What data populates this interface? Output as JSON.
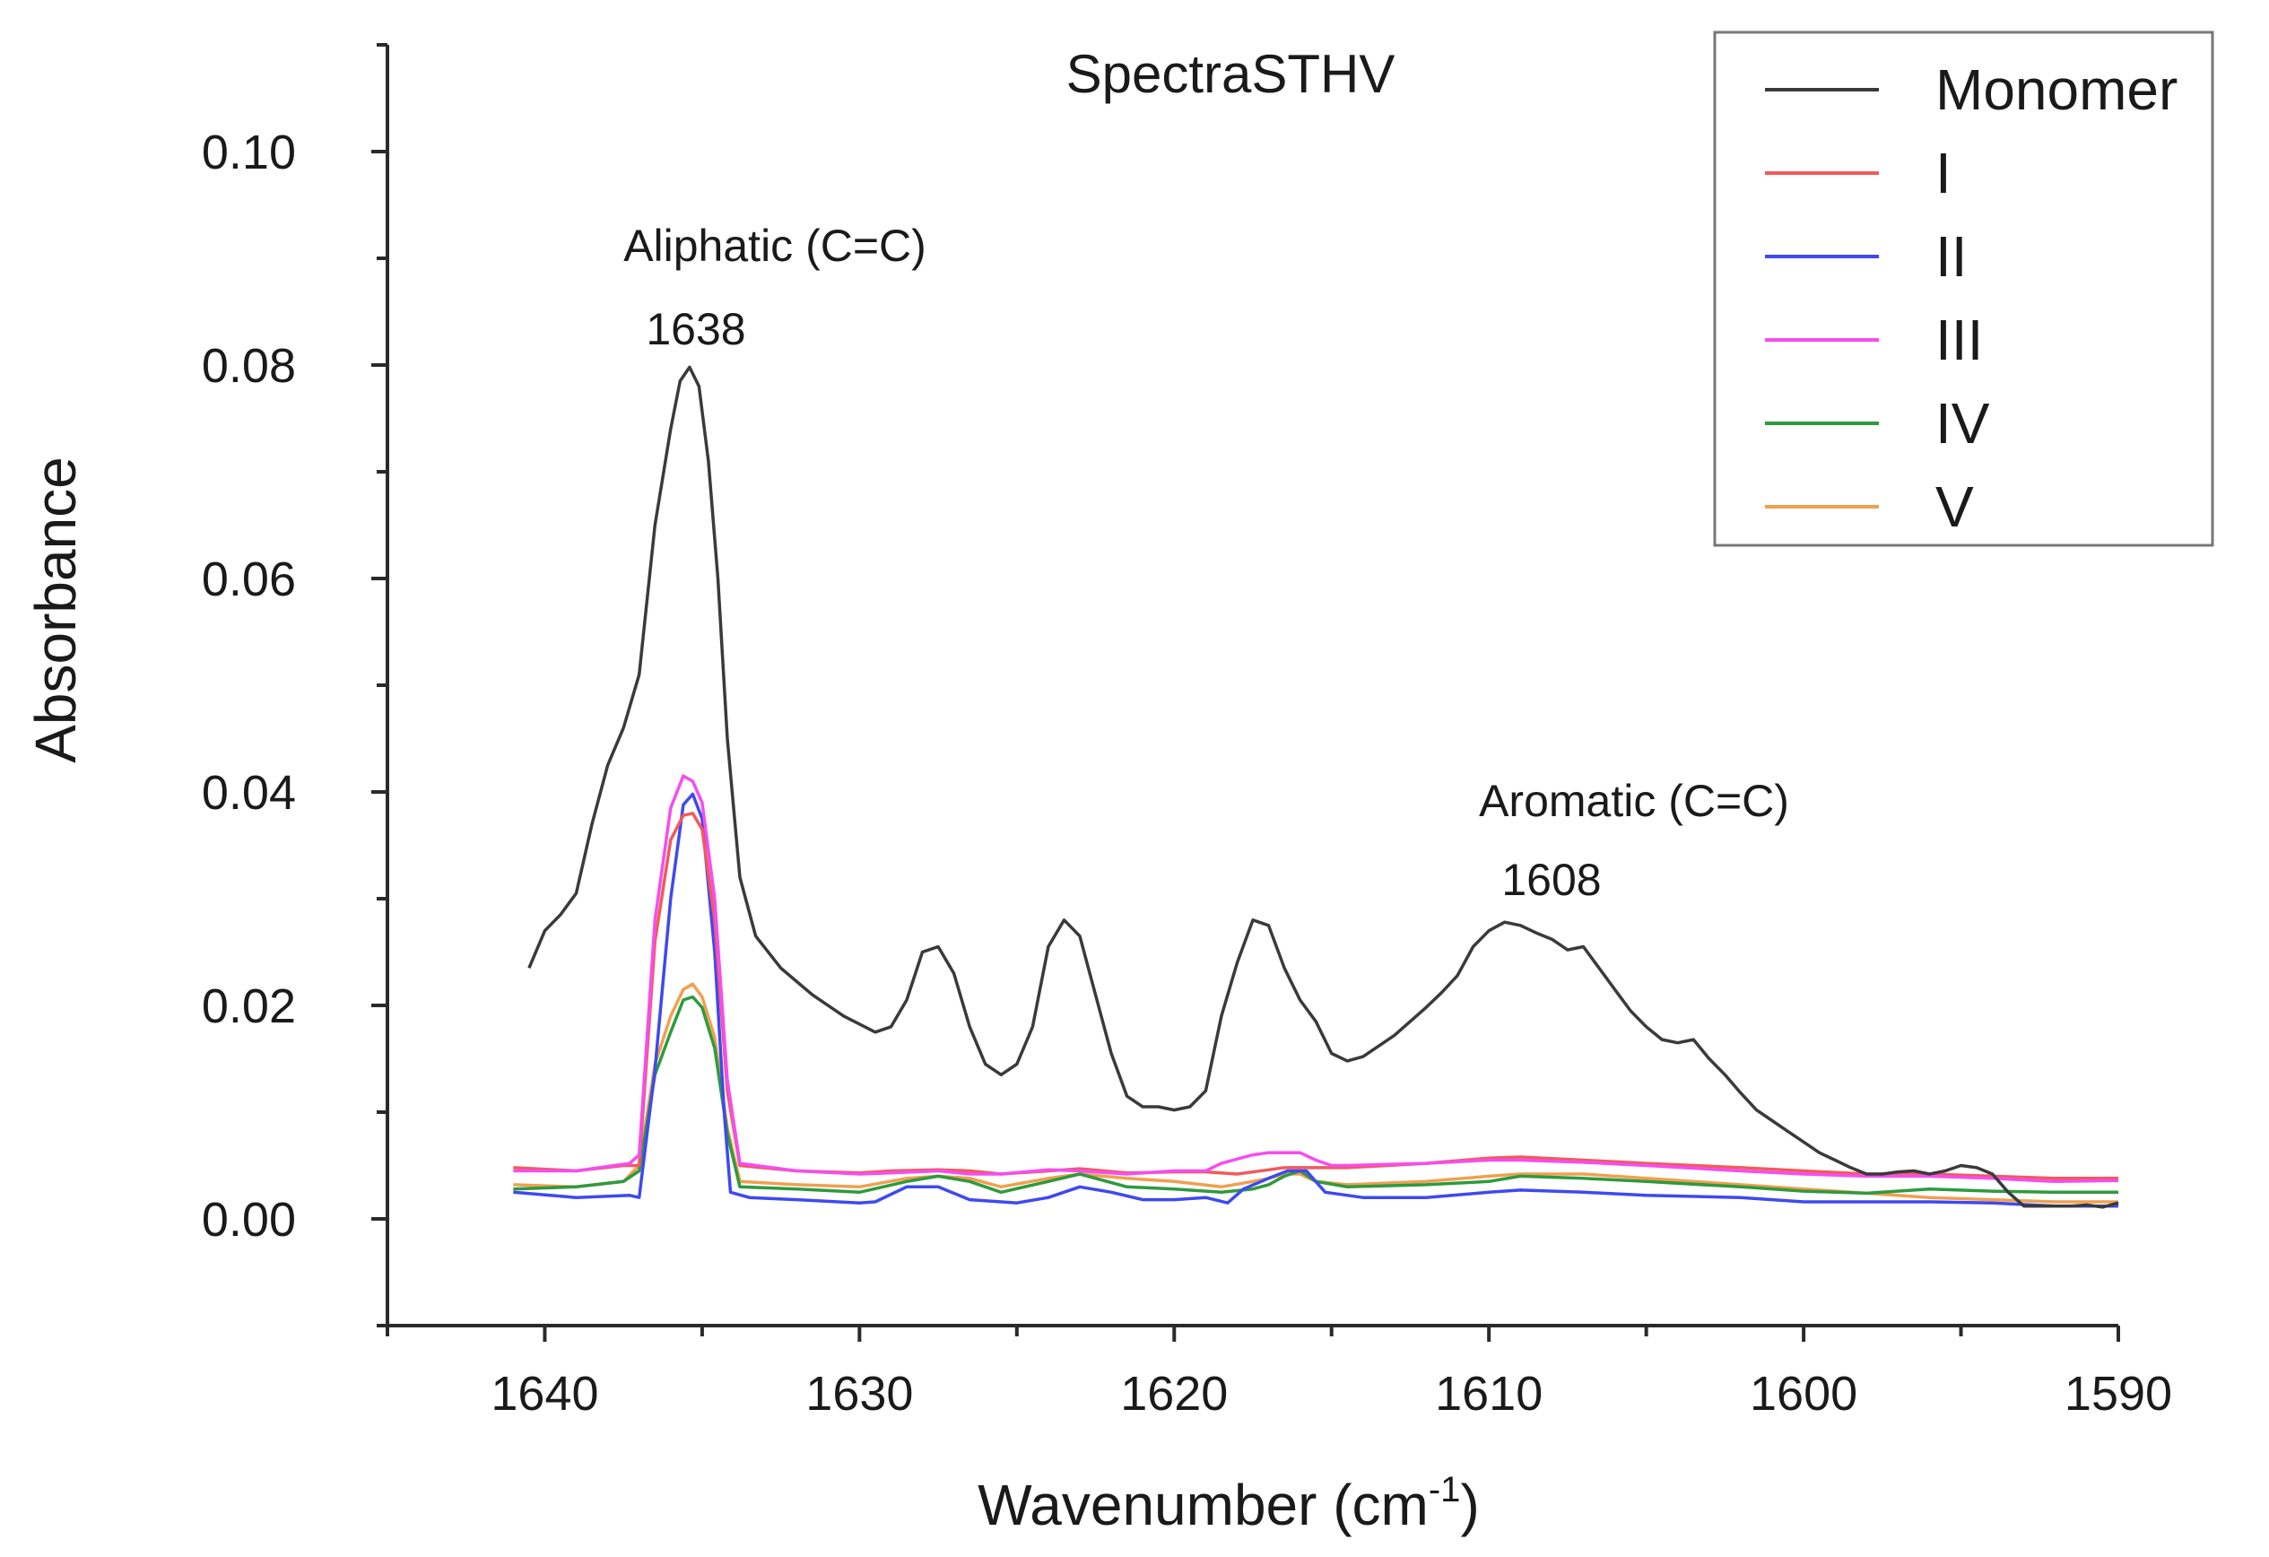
{
  "chart_data": {
    "type": "line",
    "title": "SpectraSTHV",
    "xlabel": "Wavenumber (cm",
    "xlabel_sup": "-1",
    "xlabel_suffix": ")",
    "ylabel": "Absorbance",
    "xlim": [
      1645,
      1590
    ],
    "ylim": [
      -0.01,
      0.11
    ],
    "x_ticks": [
      1640,
      1630,
      1620,
      1610,
      1600,
      1590
    ],
    "x_tick_labels": [
      "1640",
      "1630",
      "1620",
      "1610",
      "1600",
      "1590"
    ],
    "y_ticks": [
      0.0,
      0.02,
      0.04,
      0.06,
      0.08,
      0.1
    ],
    "y_tick_labels": [
      "0.00",
      "0.02",
      "0.04",
      "0.06",
      "0.08",
      "0.10"
    ],
    "grid": false,
    "legend_position": "top-right",
    "annotations": [
      {
        "label": "Aliphatic (C=C)",
        "value": "1638",
        "x": 1635.4,
        "y": 0.0798
      },
      {
        "label": "Aromatic (C=C)",
        "value": "1608",
        "x": 1609.2,
        "y": 0.0278
      }
    ],
    "series": [
      {
        "name": "Monomer",
        "color": "#3a3a3a",
        "x": [
          1640.5,
          1640,
          1639.5,
          1639,
          1638.5,
          1638,
          1637.5,
          1637,
          1636.5,
          1636,
          1635.7,
          1635.4,
          1635.1,
          1634.8,
          1634.5,
          1634.2,
          1633.8,
          1633.3,
          1632.5,
          1631.5,
          1630.5,
          1629.5,
          1629,
          1628.5,
          1628,
          1627.5,
          1627,
          1626.5,
          1626,
          1625.5,
          1625,
          1624.5,
          1624,
          1623.5,
          1623,
          1622.5,
          1622,
          1621.5,
          1621,
          1620.5,
          1620,
          1619.5,
          1619,
          1618.5,
          1618,
          1617.5,
          1617,
          1616.5,
          1616,
          1615.5,
          1615,
          1614.5,
          1614,
          1613.5,
          1613,
          1612.5,
          1612,
          1611.5,
          1611,
          1610.5,
          1610,
          1609.5,
          1609,
          1608.5,
          1608,
          1607.5,
          1607,
          1606.5,
          1606,
          1605.5,
          1605,
          1604.5,
          1604,
          1603.5,
          1603,
          1602.5,
          1602,
          1601.5,
          1601,
          1600.5,
          1600,
          1599.5,
          1599,
          1598.5,
          1598,
          1597.5,
          1597,
          1596.5,
          1596,
          1595.5,
          1595,
          1594.5,
          1594,
          1593.5,
          1593,
          1592.5,
          1592,
          1591.5,
          1591,
          1590.5,
          1590
        ],
        "y": [
          0.0235,
          0.027,
          0.0285,
          0.0305,
          0.037,
          0.0425,
          0.046,
          0.051,
          0.065,
          0.074,
          0.0785,
          0.0798,
          0.078,
          0.071,
          0.06,
          0.045,
          0.032,
          0.0265,
          0.0235,
          0.021,
          0.019,
          0.0175,
          0.018,
          0.0205,
          0.025,
          0.0255,
          0.023,
          0.018,
          0.0145,
          0.0135,
          0.0145,
          0.018,
          0.0255,
          0.028,
          0.0265,
          0.021,
          0.0155,
          0.0115,
          0.0105,
          0.0105,
          0.0102,
          0.0105,
          0.012,
          0.019,
          0.024,
          0.028,
          0.0275,
          0.0235,
          0.0205,
          0.0185,
          0.0155,
          0.0148,
          0.0152,
          0.0162,
          0.0172,
          0.0185,
          0.0198,
          0.0212,
          0.0228,
          0.0255,
          0.027,
          0.0278,
          0.0275,
          0.0268,
          0.0262,
          0.0252,
          0.0255,
          0.0235,
          0.0215,
          0.0195,
          0.018,
          0.0168,
          0.0165,
          0.0168,
          0.015,
          0.0135,
          0.0118,
          0.0102,
          0.0092,
          0.0082,
          0.0072,
          0.0062,
          0.0055,
          0.0048,
          0.0042,
          0.0042,
          0.0044,
          0.0045,
          0.0042,
          0.0045,
          0.005,
          0.0048,
          0.0042,
          0.0025,
          0.0012,
          0.0012,
          0.0012,
          0.0012,
          0.0013,
          0.0011,
          0.0015
        ]
      },
      {
        "name": "I",
        "color": "#f25a5a",
        "x": [
          1641,
          1639,
          1637.5,
          1637,
          1636.5,
          1636,
          1635.6,
          1635.3,
          1635,
          1634.6,
          1634.2,
          1633.8,
          1632,
          1630,
          1629,
          1627.5,
          1626.5,
          1625.5,
          1624,
          1623,
          1621.5,
          1620,
          1619,
          1618,
          1617,
          1616.5,
          1616,
          1615.5,
          1614.5,
          1612,
          1610,
          1609,
          1607,
          1605,
          1602,
          1600,
          1598,
          1596,
          1594,
          1592,
          1590
        ],
        "y": [
          0.0048,
          0.0045,
          0.005,
          0.005,
          0.026,
          0.0355,
          0.0378,
          0.038,
          0.0365,
          0.028,
          0.012,
          0.005,
          0.0045,
          0.0043,
          0.0045,
          0.0046,
          0.0045,
          0.0042,
          0.0045,
          0.0047,
          0.0043,
          0.0044,
          0.0044,
          0.0042,
          0.0046,
          0.0048,
          0.0048,
          0.0048,
          0.0048,
          0.0052,
          0.0057,
          0.0058,
          0.0055,
          0.0052,
          0.0048,
          0.0045,
          0.0042,
          0.0042,
          0.004,
          0.0038,
          0.0038
        ]
      },
      {
        "name": "II",
        "color": "#3e49f0",
        "x": [
          1641,
          1639,
          1637.3,
          1637,
          1636.5,
          1636,
          1635.6,
          1635.3,
          1635,
          1634.6,
          1634.3,
          1634.1,
          1633.5,
          1632,
          1630,
          1629.5,
          1628.5,
          1627.5,
          1626.5,
          1625.5,
          1625,
          1624,
          1623,
          1622,
          1621,
          1620,
          1619,
          1618.3,
          1617.8,
          1617,
          1616.4,
          1615.8,
          1615.2,
          1614,
          1612,
          1610,
          1609,
          1607,
          1605,
          1602,
          1600,
          1598,
          1596,
          1594,
          1592,
          1590
        ],
        "y": [
          0.0025,
          0.002,
          0.0022,
          0.002,
          0.014,
          0.03,
          0.0388,
          0.0398,
          0.0375,
          0.025,
          0.01,
          0.0025,
          0.002,
          0.0018,
          0.0015,
          0.0016,
          0.003,
          0.003,
          0.0018,
          0.0016,
          0.0015,
          0.002,
          0.003,
          0.0025,
          0.0018,
          0.0018,
          0.002,
          0.0015,
          0.0028,
          0.0038,
          0.0045,
          0.0045,
          0.0025,
          0.002,
          0.002,
          0.0025,
          0.0027,
          0.0025,
          0.0022,
          0.002,
          0.0016,
          0.0016,
          0.0016,
          0.0015,
          0.0012,
          0.0012
        ]
      },
      {
        "name": "III",
        "color": "#f54df0",
        "x": [
          1641,
          1639,
          1637.3,
          1637,
          1636.5,
          1636,
          1635.6,
          1635.3,
          1635,
          1634.6,
          1634.2,
          1633.8,
          1632,
          1630,
          1629,
          1627.5,
          1626.5,
          1625.5,
          1624,
          1623,
          1621.5,
          1620,
          1619,
          1618.5,
          1617.5,
          1617,
          1616.5,
          1616,
          1615.5,
          1615,
          1614.5,
          1612,
          1610,
          1609,
          1607,
          1605,
          1602,
          1600,
          1598,
          1596,
          1594,
          1592,
          1590
        ],
        "y": [
          0.0045,
          0.0045,
          0.0052,
          0.006,
          0.028,
          0.0385,
          0.0415,
          0.041,
          0.039,
          0.03,
          0.013,
          0.0052,
          0.0045,
          0.0042,
          0.0043,
          0.0045,
          0.0042,
          0.0042,
          0.0046,
          0.0045,
          0.0042,
          0.0045,
          0.0045,
          0.0052,
          0.006,
          0.0062,
          0.0062,
          0.0062,
          0.0055,
          0.005,
          0.005,
          0.0052,
          0.0055,
          0.0055,
          0.0053,
          0.005,
          0.0045,
          0.0042,
          0.004,
          0.004,
          0.0038,
          0.0035,
          0.0036
        ]
      },
      {
        "name": "IV",
        "color": "#2e9a3e",
        "x": [
          1641,
          1639,
          1637.5,
          1637,
          1636.5,
          1636,
          1635.6,
          1635.3,
          1635,
          1634.6,
          1634.2,
          1633.8,
          1632,
          1630,
          1628.5,
          1627.5,
          1626.5,
          1625.5,
          1624,
          1623,
          1621.5,
          1620,
          1618.5,
          1617.5,
          1617,
          1616.5,
          1616,
          1615.5,
          1614.5,
          1612,
          1610,
          1609,
          1607,
          1605,
          1602,
          1600,
          1598,
          1596,
          1594,
          1592,
          1590
        ],
        "y": [
          0.0028,
          0.003,
          0.0035,
          0.0045,
          0.0135,
          0.0175,
          0.0205,
          0.0208,
          0.0198,
          0.016,
          0.008,
          0.003,
          0.0028,
          0.0025,
          0.0035,
          0.004,
          0.0035,
          0.0025,
          0.0035,
          0.0042,
          0.003,
          0.0028,
          0.0025,
          0.0028,
          0.0032,
          0.004,
          0.0045,
          0.0035,
          0.003,
          0.0032,
          0.0035,
          0.004,
          0.0038,
          0.0035,
          0.003,
          0.0026,
          0.0024,
          0.0028,
          0.0026,
          0.0025,
          0.0025
        ]
      },
      {
        "name": "V",
        "color": "#f0a050",
        "x": [
          1641,
          1639,
          1637.5,
          1637,
          1636.5,
          1636,
          1635.6,
          1635.3,
          1635,
          1634.6,
          1634.2,
          1633.8,
          1632,
          1630,
          1628.5,
          1627.5,
          1626.5,
          1625.5,
          1624,
          1623,
          1621.5,
          1620,
          1618.5,
          1617.5,
          1617,
          1616.5,
          1616,
          1615.5,
          1614.5,
          1612,
          1610,
          1609,
          1607,
          1605,
          1602,
          1600,
          1598,
          1596,
          1594,
          1592,
          1590
        ],
        "y": [
          0.0032,
          0.003,
          0.0035,
          0.005,
          0.0145,
          0.019,
          0.0215,
          0.022,
          0.0208,
          0.017,
          0.0085,
          0.0035,
          0.0032,
          0.003,
          0.0038,
          0.004,
          0.0038,
          0.003,
          0.0038,
          0.0042,
          0.0038,
          0.0035,
          0.003,
          0.0035,
          0.0038,
          0.0042,
          0.0042,
          0.0035,
          0.0032,
          0.0035,
          0.004,
          0.0042,
          0.0042,
          0.0038,
          0.0032,
          0.0028,
          0.0024,
          0.002,
          0.0018,
          0.0016,
          0.0016
        ]
      }
    ]
  }
}
